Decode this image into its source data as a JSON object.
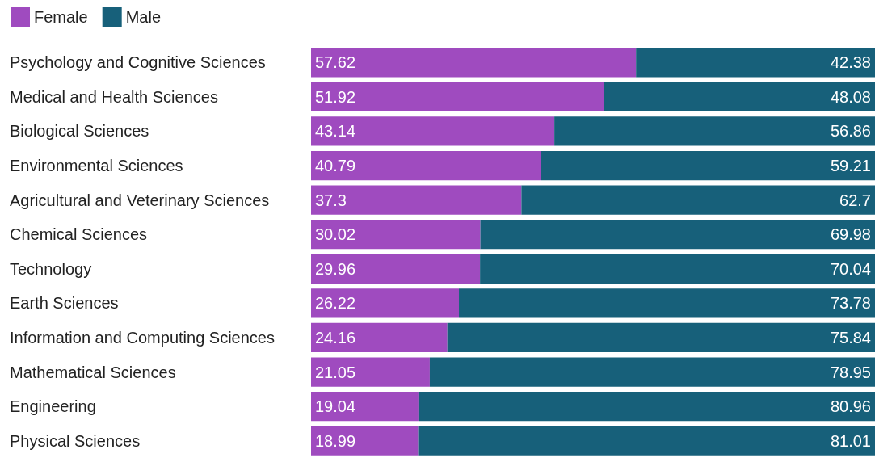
{
  "chart_data": {
    "type": "bar",
    "orientation": "horizontal",
    "stacked": true,
    "data_labels": true,
    "legend": "top left",
    "grid": false,
    "tick_labels": "y",
    "xlim": [
      0,
      100
    ],
    "categories": [
      "Psychology and Cognitive Sciences",
      "Medical and Health Sciences",
      "Biological Sciences",
      "Environmental Sciences",
      "Agricultural and Veterinary Sciences",
      "Chemical Sciences",
      "Technology",
      "Earth Sciences",
      "Information and Computing Sciences",
      "Mathematical Sciences",
      "Engineering",
      "Physical Sciences"
    ],
    "series": [
      {
        "name": "Female",
        "color": "#9f4bbf",
        "values": [
          57.62,
          51.92,
          43.14,
          40.79,
          37.3,
          30.02,
          29.96,
          26.22,
          24.16,
          21.05,
          19.04,
          18.99
        ]
      },
      {
        "name": "Male",
        "color": "#17607a",
        "values": [
          42.38,
          48.08,
          56.86,
          59.21,
          62.7,
          69.98,
          70.04,
          73.78,
          75.84,
          78.95,
          80.96,
          81.01
        ]
      }
    ]
  }
}
